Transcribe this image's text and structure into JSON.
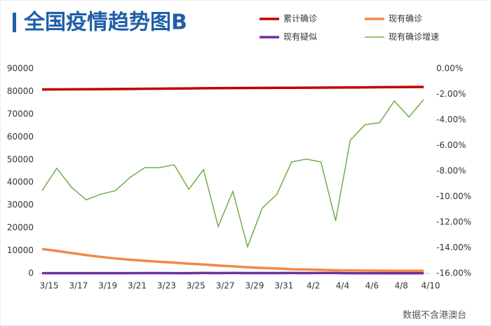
{
  "chart_data": {
    "type": "line",
    "title": "全国疫情趋势图B",
    "footnote": "数据不含港澳台",
    "categories": [
      "3/15",
      null,
      "3/17",
      null,
      "3/19",
      null,
      "3/21",
      null,
      "3/23",
      null,
      "3/25",
      null,
      "3/27",
      null,
      "3/29",
      null,
      "3/31",
      null,
      "4/2",
      null,
      "4/4",
      null,
      "4/6",
      null,
      "4/8",
      null,
      "4/10"
    ],
    "series": [
      {
        "name": "累计确诊",
        "color": "#c00000",
        "values": [
          80860,
          80894,
          80928,
          80967,
          81008,
          81054,
          81093,
          81171,
          81218,
          81285,
          81340,
          81394,
          81439,
          81470,
          81518,
          81554,
          81589,
          81620,
          81639,
          81669,
          81708,
          81740,
          81802,
          81865,
          81907,
          81953,
          82000
        ]
      },
      {
        "name": "现有确诊",
        "color": "#f08a46",
        "values": [
          10734,
          9898,
          8976,
          8056,
          7263,
          6569,
          6013,
          5549,
          5120,
          4735,
          4287,
          3947,
          3460,
          3128,
          2691,
          2396,
          2161,
          1863,
          1727,
          1562,
          1376,
          1299,
          1242,
          1190,
          1160,
          1156,
          1141
        ]
      },
      {
        "name": "现有疑似",
        "color": "#7030a0",
        "values": [
          115,
          134,
          105,
          115,
          104,
          106,
          118,
          136,
          135,
          132,
          134,
          189,
          168,
          174,
          153,
          172,
          153,
          183,
          153,
          184,
          191,
          80,
          81,
          81,
          72,
          68,
          76
        ]
      },
      {
        "name": "现有确诊增速",
        "color": "#70ad47",
        "axis": "y2",
        "values": [
          -9.53,
          -7.78,
          -9.26,
          -10.25,
          -9.81,
          -9.53,
          -8.49,
          -7.73,
          -7.73,
          -7.51,
          -9.42,
          -7.89,
          -12.33,
          -9.59,
          -13.92,
          -10.9,
          -9.81,
          -7.29,
          -7.07,
          -7.29,
          -11.89,
          -5.59,
          -4.38,
          -4.22,
          -2.52,
          -3.78,
          -2.41
        ]
      }
    ],
    "ylim": [
      0,
      90000
    ],
    "yticks": [
      0,
      10000,
      20000,
      30000,
      40000,
      50000,
      60000,
      70000,
      80000,
      90000
    ],
    "y2lim": [
      -16,
      0
    ],
    "y2ticks": [
      {
        "value": 0,
        "label": "0.00%"
      },
      {
        "value": -2,
        "label": "-2.00%"
      },
      {
        "value": -4,
        "label": "-4.00%"
      },
      {
        "value": -6,
        "label": "-6.00%"
      },
      {
        "value": -8,
        "label": "-8.00%"
      },
      {
        "value": -10,
        "label": "-10.00%"
      },
      {
        "value": -12,
        "label": "-12.00%"
      },
      {
        "value": -14,
        "label": "-14.00%"
      },
      {
        "value": -16,
        "label": "-16.00%"
      }
    ],
    "grid": false
  }
}
